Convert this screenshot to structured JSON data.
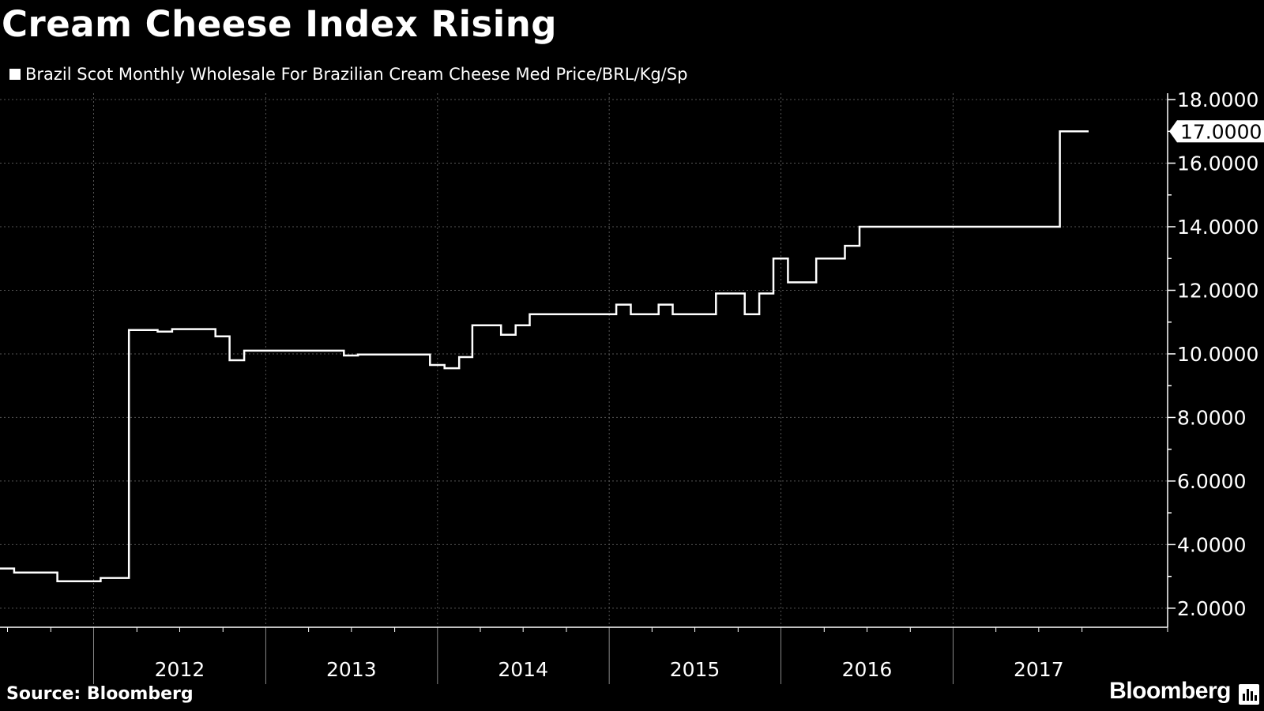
{
  "header": {
    "title": "Cream Cheese Index Rising"
  },
  "footer": {
    "source": "Source: Bloomberg",
    "brand": "Bloomberg",
    "brand_icon": "chart-bars-icon"
  },
  "colors": {
    "background": "#000000",
    "line": "#ffffff",
    "grid": "#555555"
  },
  "chart_data": {
    "type": "line",
    "style": "step",
    "title": "Cream Cheese Index Rising",
    "legend": {
      "position": "top-left",
      "entries": [
        "Brazil Scot Monthly Wholesale For Brazilian Cream Cheese Med Price/BRL/Kg/Sp"
      ]
    },
    "series": [
      {
        "name": "Brazil Scot Monthly Wholesale For Brazilian Cream Cheese Med Price/BRL/Kg/Sp",
        "points": [
          [
            "2011-06-15",
            3.25
          ],
          [
            "2011-07-15",
            3.12
          ],
          [
            "2011-10-15",
            2.85
          ],
          [
            "2012-01-15",
            2.95
          ],
          [
            "2012-03-15",
            10.75
          ],
          [
            "2012-05-15",
            10.7
          ],
          [
            "2012-06-15",
            10.78
          ],
          [
            "2012-09-15",
            10.55
          ],
          [
            "2012-10-15",
            9.8
          ],
          [
            "2012-11-15",
            10.1
          ],
          [
            "2013-06-15",
            9.95
          ],
          [
            "2013-07-15",
            9.98
          ],
          [
            "2013-12-15",
            9.65
          ],
          [
            "2014-01-15",
            9.55
          ],
          [
            "2014-02-15",
            9.9
          ],
          [
            "2014-03-15",
            10.9
          ],
          [
            "2014-05-15",
            10.6
          ],
          [
            "2014-06-15",
            10.9
          ],
          [
            "2014-07-15",
            11.25
          ],
          [
            "2015-01-15",
            11.55
          ],
          [
            "2015-02-15",
            11.25
          ],
          [
            "2015-04-15",
            11.55
          ],
          [
            "2015-05-15",
            11.25
          ],
          [
            "2015-08-15",
            11.9
          ],
          [
            "2015-10-15",
            11.25
          ],
          [
            "2015-11-15",
            11.9
          ],
          [
            "2015-12-15",
            13.0
          ],
          [
            "2016-01-15",
            12.25
          ],
          [
            "2016-03-15",
            13.0
          ],
          [
            "2016-05-15",
            13.4
          ],
          [
            "2016-06-15",
            14.0
          ],
          [
            "2017-08-15",
            17.0
          ],
          [
            "2017-10-15",
            17.0
          ]
        ]
      }
    ],
    "last_value_label": "17.0000",
    "x_tick_labels": [
      "2012",
      "2013",
      "2014",
      "2015",
      "2016",
      "2017"
    ],
    "y_ticks": [
      2,
      4,
      6,
      8,
      10,
      12,
      14,
      16,
      18
    ],
    "y_tick_labels": [
      "2.0000",
      "4.0000",
      "6.0000",
      "8.0000",
      "10.0000",
      "12.0000",
      "14.0000",
      "16.0000",
      "18.0000"
    ],
    "ylim": [
      1.4,
      18.2
    ],
    "xlim": [
      "2011-06-15",
      "2018-04-01"
    ],
    "y_axis_side": "right",
    "grid": true
  }
}
